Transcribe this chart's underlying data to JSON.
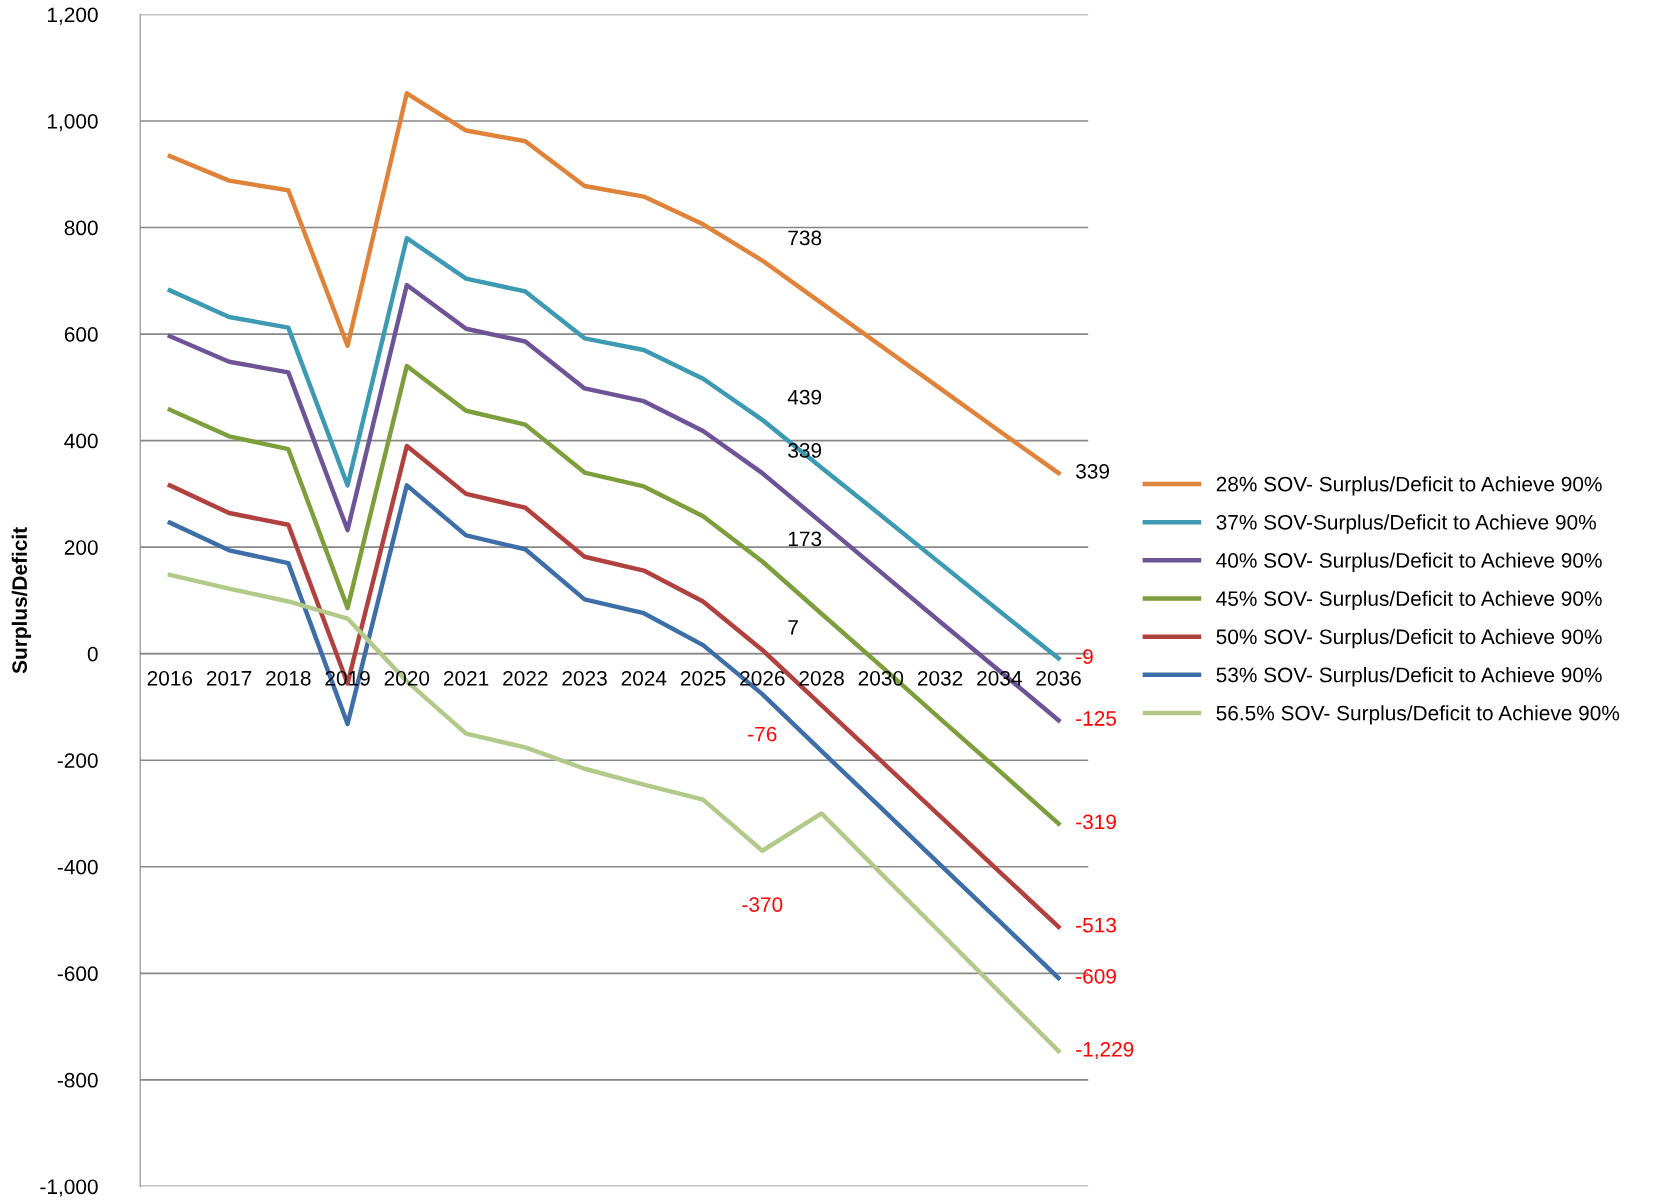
{
  "chart_data": {
    "type": "line",
    "ylabel": "Surplus/Deficit",
    "categories": [
      "2016",
      "2017",
      "2018",
      "2019",
      "2020",
      "2021",
      "2022",
      "2023",
      "2024",
      "2025",
      "2026",
      "2028",
      "2030",
      "2032",
      "2034",
      "2036"
    ],
    "series": [
      {
        "name": "28% SOV- Surplus/Deficit to Achieve 90%",
        "color": "#e0833a",
        "values": [
          934,
          888,
          870,
          578,
          1052,
          982,
          962,
          878,
          858,
          806,
          738,
          658,
          578,
          498,
          418,
          339
        ],
        "value_labels": [
          null,
          null,
          null,
          null,
          null,
          null,
          null,
          null,
          null,
          null,
          "738",
          null,
          null,
          null,
          null,
          "339"
        ]
      },
      {
        "name": "37% SOV-Surplus/Deficit to Achieve 90%",
        "color": "#3d9ab2",
        "values": [
          682,
          632,
          612,
          316,
          780,
          704,
          680,
          592,
          570,
          516,
          439,
          349,
          260,
          170,
          80,
          -9
        ],
        "value_labels": [
          null,
          null,
          null,
          null,
          null,
          null,
          null,
          null,
          null,
          null,
          "439",
          null,
          null,
          null,
          null,
          "-9"
        ]
      },
      {
        "name": "40% SOV- Surplus/Deficit to Achieve 90%",
        "color": "#6d5496",
        "values": [
          596,
          548,
          528,
          232,
          692,
          610,
          586,
          498,
          474,
          418,
          339,
          246,
          153,
          60,
          -32,
          -125
        ],
        "value_labels": [
          null,
          null,
          null,
          null,
          null,
          null,
          null,
          null,
          null,
          null,
          "339",
          null,
          null,
          null,
          null,
          "-125"
        ]
      },
      {
        "name": "45% SOV- Surplus/Deficit to Achieve 90%",
        "color": "#7d9e3c",
        "values": [
          458,
          408,
          384,
          86,
          540,
          456,
          430,
          340,
          314,
          258,
          173,
          75,
          -23,
          -122,
          -220,
          -319
        ],
        "value_labels": [
          null,
          null,
          null,
          null,
          null,
          null,
          null,
          null,
          null,
          null,
          "173",
          null,
          null,
          null,
          null,
          "-319"
        ]
      },
      {
        "name": "50% SOV- Surplus/Deficit to Achieve 90%",
        "color": "#b0413e",
        "values": [
          316,
          264,
          242,
          -56,
          390,
          300,
          274,
          182,
          156,
          98,
          7,
          -97,
          -201,
          -305,
          -409,
          -513
        ],
        "value_labels": [
          null,
          null,
          null,
          null,
          null,
          null,
          null,
          null,
          null,
          null,
          "7",
          null,
          null,
          null,
          null,
          "-513"
        ]
      },
      {
        "name": "53% SOV- Surplus/Deficit to Achieve 90%",
        "color": "#3e6ea8",
        "values": [
          246,
          194,
          170,
          -132,
          316,
          222,
          196,
          102,
          76,
          16,
          -76,
          -183,
          -289,
          -396,
          -502,
          -609
        ],
        "value_labels": [
          null,
          null,
          null,
          null,
          null,
          null,
          null,
          null,
          null,
          null,
          "-76",
          null,
          null,
          null,
          null,
          "-609"
        ]
      },
      {
        "name": "56.5% SOV- Surplus/Deficit to Achieve 90%",
        "color": "#b3c98a",
        "values": [
          148,
          122,
          98,
          66,
          -52,
          -150,
          -176,
          -216,
          -246,
          -274,
          -370,
          -300,
          -412,
          -523,
          -635,
          -746
        ],
        "value_labels": [
          null,
          null,
          null,
          null,
          null,
          null,
          null,
          null,
          null,
          null,
          "-370",
          null,
          null,
          null,
          null,
          null
        ]
      }
    ],
    "annotations": [
      "-1,229"
    ],
    "ylim": [
      -1000,
      1200
    ],
    "yticks": [
      {
        "value": -1000,
        "label": "-1,000"
      },
      -800,
      -600,
      -400,
      -200,
      0,
      200,
      400,
      600,
      800,
      {
        "value": 1000,
        "label": "1,000"
      },
      {
        "value": 1200,
        "label": "1,200"
      }
    ],
    "grid": "y",
    "legend": "right",
    "marker": "none",
    "line_style": "solid"
  }
}
